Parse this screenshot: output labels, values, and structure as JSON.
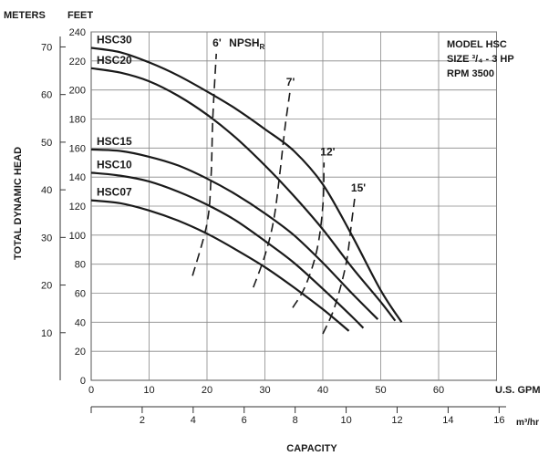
{
  "chart_data": {
    "type": "line",
    "title_lines": [
      "MODEL HSC",
      "SIZE ³/₄ - 3 HP",
      "RPM 3500"
    ],
    "xlabel": "CAPACITY",
    "ylabel": "TOTAL DYNAMIC HEAD",
    "x_units_primary": "U.S. GPM",
    "x_units_secondary": "m³/hr",
    "y_units_left": "METERS",
    "y_units_right": "FEET",
    "xlim": [
      0,
      70
    ],
    "ylim": [
      0,
      240
    ],
    "grid": true,
    "x_ticks": [
      0,
      10,
      20,
      30,
      40,
      50,
      60
    ],
    "m3hr_ticks": [
      2,
      4,
      6,
      8,
      10,
      12,
      14,
      16
    ],
    "feet_ticks": [
      0,
      20,
      40,
      60,
      80,
      100,
      120,
      140,
      160,
      180,
      200,
      220,
      240
    ],
    "meters_ticks": [
      10,
      20,
      30,
      40,
      50,
      60,
      70
    ],
    "series": [
      {
        "name": "HSC30",
        "points": [
          [
            0,
            229
          ],
          [
            5,
            226
          ],
          [
            10,
            219
          ],
          [
            15,
            210
          ],
          [
            20,
            199
          ],
          [
            25,
            187
          ],
          [
            30,
            173
          ],
          [
            35,
            158
          ],
          [
            40,
            135
          ],
          [
            45,
            100
          ],
          [
            50,
            62
          ],
          [
            53.6,
            40
          ]
        ]
      },
      {
        "name": "HSC20",
        "points": [
          [
            0,
            215
          ],
          [
            5,
            212
          ],
          [
            10,
            206
          ],
          [
            15,
            196
          ],
          [
            20,
            183
          ],
          [
            25,
            167
          ],
          [
            30,
            148
          ],
          [
            35,
            127
          ],
          [
            40,
            104
          ],
          [
            45,
            78
          ],
          [
            50,
            54
          ],
          [
            52.5,
            41
          ]
        ]
      },
      {
        "name": "HSC15",
        "points": [
          [
            0,
            159
          ],
          [
            5,
            158
          ],
          [
            10,
            154
          ],
          [
            15,
            148
          ],
          [
            20,
            139
          ],
          [
            25,
            128
          ],
          [
            30,
            115
          ],
          [
            35,
            100
          ],
          [
            40,
            81
          ],
          [
            45,
            60
          ],
          [
            49.5,
            42
          ]
        ]
      },
      {
        "name": "HSC10",
        "points": [
          [
            0,
            143
          ],
          [
            5,
            141
          ],
          [
            10,
            137
          ],
          [
            15,
            130
          ],
          [
            20,
            121
          ],
          [
            25,
            110
          ],
          [
            30,
            96
          ],
          [
            35,
            81
          ],
          [
            40,
            63
          ],
          [
            45,
            44
          ],
          [
            47,
            36
          ]
        ]
      },
      {
        "name": "HSC07",
        "points": [
          [
            0,
            124
          ],
          [
            5,
            122
          ],
          [
            10,
            117
          ],
          [
            15,
            110
          ],
          [
            20,
            101
          ],
          [
            25,
            90
          ],
          [
            30,
            78
          ],
          [
            35,
            64
          ],
          [
            40,
            49
          ],
          [
            44.5,
            34
          ]
        ]
      }
    ],
    "npsh_series": [
      {
        "name": "6'",
        "points": [
          [
            17.5,
            72
          ],
          [
            20,
            108
          ],
          [
            20.7,
            140
          ],
          [
            21,
            180
          ],
          [
            21.6,
            225
          ]
        ]
      },
      {
        "name": "7'",
        "points": [
          [
            28,
            64
          ],
          [
            30,
            86
          ],
          [
            31.5,
            110
          ],
          [
            32.5,
            140
          ],
          [
            33.5,
            175
          ],
          [
            34.3,
            198
          ]
        ]
      },
      {
        "name": "12'",
        "points": [
          [
            34.8,
            50
          ],
          [
            37,
            65
          ],
          [
            39,
            90
          ],
          [
            40,
            120
          ],
          [
            40.2,
            150
          ]
        ]
      },
      {
        "name": "15'",
        "points": [
          [
            40,
            32
          ],
          [
            42,
            50
          ],
          [
            44,
            80
          ],
          [
            45,
            110
          ],
          [
            45.5,
            125
          ]
        ]
      }
    ],
    "npsh_label": "NPSH",
    "npsh_label_sub": "R"
  }
}
